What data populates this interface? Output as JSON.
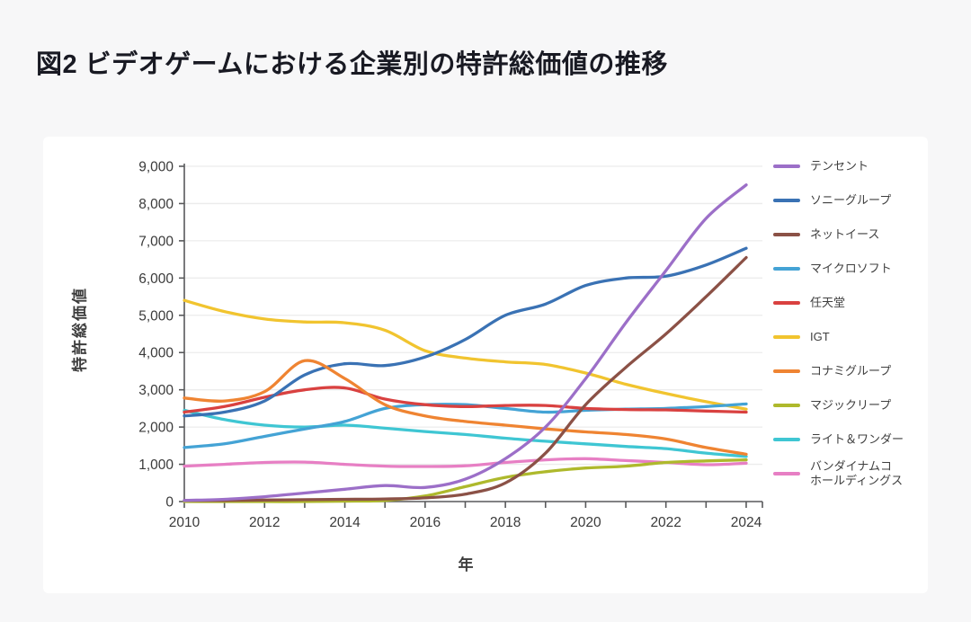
{
  "page": {
    "title": "図2 ビデオゲームにおける企業別の特許総価値の推移"
  },
  "chart_data": {
    "type": "line",
    "title": "図2 ビデオゲームにおける企業別の特許総価値の推移",
    "xlabel": "年",
    "ylabel": "特許総価値",
    "x": [
      2010,
      2011,
      2012,
      2013,
      2014,
      2015,
      2016,
      2017,
      2018,
      2019,
      2020,
      2021,
      2022,
      2023,
      2024
    ],
    "x_tick_labels": [
      "2010",
      "2012",
      "2014",
      "2016",
      "2018",
      "2020",
      "2022",
      "2024"
    ],
    "ylim": [
      0,
      9000
    ],
    "y_tick_step": 1000,
    "y_tick_labels": [
      "0",
      "1,000",
      "2,000",
      "3,000",
      "4,000",
      "5,000",
      "6,000",
      "7,000",
      "8,000",
      "9,000"
    ],
    "grid": true,
    "legend_position": "right",
    "colors": {
      "background": "#ffffff",
      "page_background": "#f7f7f8",
      "gridline": "#ececec",
      "axis": "#58595b",
      "tick_text": "#3a3a3a"
    },
    "series": [
      {
        "name": "テンセント",
        "color": "#9c6fc8",
        "values": [
          30,
          60,
          130,
          230,
          330,
          430,
          380,
          600,
          1150,
          2000,
          3300,
          4800,
          6200,
          7600,
          8500
        ]
      },
      {
        "name": "ソニーグループ",
        "color": "#3a72b4",
        "values": [
          2300,
          2400,
          2700,
          3400,
          3700,
          3650,
          3880,
          4350,
          5000,
          5300,
          5800,
          6000,
          6050,
          6350,
          6800
        ]
      },
      {
        "name": "ネットイース",
        "color": "#8b5146",
        "values": [
          30,
          30,
          40,
          50,
          60,
          70,
          100,
          200,
          500,
          1300,
          2600,
          3600,
          4500,
          5500,
          6550
        ]
      },
      {
        "name": "マイクロソフト",
        "color": "#44a3d5",
        "values": [
          1450,
          1550,
          1750,
          1950,
          2150,
          2500,
          2600,
          2600,
          2500,
          2400,
          2450,
          2480,
          2500,
          2550,
          2620
        ]
      },
      {
        "name": "任天堂",
        "color": "#d94140",
        "values": [
          2400,
          2550,
          2800,
          3000,
          3050,
          2750,
          2600,
          2550,
          2580,
          2580,
          2500,
          2470,
          2460,
          2430,
          2400
        ]
      },
      {
        "name": "IGT",
        "color": "#f1c42f",
        "values": [
          5400,
          5100,
          4900,
          4820,
          4800,
          4600,
          4050,
          3850,
          3750,
          3680,
          3450,
          3150,
          2900,
          2680,
          2480
        ]
      },
      {
        "name": "コナミグループ",
        "color": "#ef8432",
        "values": [
          2780,
          2700,
          2950,
          3780,
          3300,
          2600,
          2300,
          2150,
          2050,
          1950,
          1870,
          1800,
          1680,
          1450,
          1270
        ]
      },
      {
        "name": "マジックリープ",
        "color": "#aeb92c",
        "values": [
          0,
          0,
          0,
          0,
          10,
          30,
          150,
          400,
          650,
          800,
          900,
          950,
          1050,
          1090,
          1120
        ]
      },
      {
        "name": "ライト＆ワンダー",
        "color": "#3fc6d3",
        "values": [
          2450,
          2200,
          2050,
          2000,
          2050,
          1970,
          1880,
          1800,
          1700,
          1620,
          1550,
          1480,
          1420,
          1300,
          1210
        ]
      },
      {
        "name": "バンダイナムコ ホールディングス",
        "lines": [
          "バンダイナムコ",
          "ホールディングス"
        ],
        "color": "#e77fc4",
        "values": [
          950,
          1000,
          1050,
          1060,
          1000,
          950,
          940,
          960,
          1050,
          1120,
          1150,
          1100,
          1050,
          990,
          1030
        ]
      }
    ]
  }
}
